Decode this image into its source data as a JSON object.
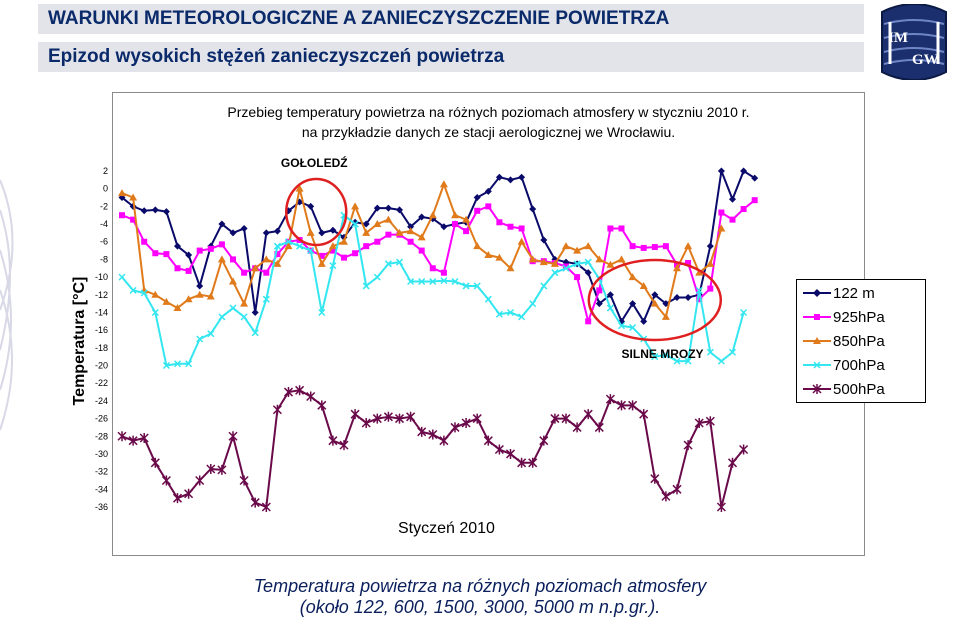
{
  "header": {
    "title": "WARUNKI METEOROLOGICZNE A ZANIECZYSZCZENIE POWIETRZA",
    "subtitle": "Epizod wysokich stężeń zanieczyszczeń powietrza",
    "logo_text_top": "IM",
    "logo_text_bottom": "GW"
  },
  "caption": {
    "line1": "Temperatura powietrza na różnych poziomach atmosfery",
    "line2": "(około 122, 600, 1500, 3000, 5000 m n.p.gr.)."
  },
  "colors": {
    "series_122m": "#0a0a6a",
    "series_925": "#ff00ff",
    "series_850": "#e07a1a",
    "series_700": "#33e6f0",
    "series_500": "#6a0a4a",
    "annotation_circle": "#e02020",
    "header_text": "#0a2a6a",
    "caption_text": "#0a1f5c"
  },
  "chart_data": {
    "type": "line",
    "title": "Przebieg temperatury powietrza na różnych poziomach atmosfery w styczniu 2010 r.",
    "subtitle": "na przykładzie  danych ze stacji aerologicznej we Wrocławiu.",
    "xlabel": "Styczeń 2010",
    "ylabel": "Temperatura [°C]",
    "ylim": [
      -36,
      2
    ],
    "yticks": [
      2,
      0,
      -2,
      -4,
      -6,
      -8,
      -10,
      -12,
      -14,
      -16,
      -18,
      -20,
      -22,
      -24,
      -26,
      -28,
      -30,
      -32,
      -34,
      -36
    ],
    "grid": false,
    "legend_position": "right",
    "annotations": [
      {
        "text": "GOŁOLEDŹ",
        "x_index": 17,
        "y": -3
      },
      {
        "text": "SILNE MROZY",
        "x_index": 50,
        "y": -17
      }
    ],
    "series": [
      {
        "name": "122 m",
        "marker": "diamond",
        "values": [
          -1,
          -2,
          -2.5,
          -2.4,
          -2.6,
          -6.5,
          -7.5,
          -11,
          -6.5,
          -4,
          -5,
          -4.5,
          -14,
          -5,
          -4.8,
          -2.5,
          -1.5,
          -2,
          -5,
          -4.7,
          -5.5,
          -3.8,
          -4,
          -2.2,
          -2.2,
          -2.4,
          -4.3,
          -3.2,
          -3.4,
          -4.3,
          -4,
          -3.8,
          -1,
          -0.3,
          1.3,
          1,
          1.3,
          -2.3,
          -5.8,
          -8,
          -8.3,
          -8.5,
          -9.5,
          -13,
          -12,
          -15,
          -13,
          -15,
          -12,
          -13,
          -12.3,
          -12.3,
          -12,
          -6.5,
          2,
          -1.2,
          2,
          1.2
        ]
      },
      {
        "name": "925hPa",
        "marker": "square",
        "values": [
          -3,
          -3.5,
          -6,
          -7.3,
          -7.4,
          -9,
          -9.3,
          -7,
          -6.8,
          -6.3,
          -8,
          -9.5,
          -9,
          -9.5,
          -7.4,
          -6,
          -5.8,
          -7,
          -7.6,
          -7,
          -7.8,
          -7.3,
          -6.5,
          -6,
          -5.2,
          -5.2,
          -6,
          -7,
          -9,
          -9.5,
          -4,
          -4.8,
          -2.5,
          -2,
          -3.8,
          -4.3,
          -4.5,
          -8.2,
          -8.2,
          -8.4,
          -8.8,
          -10,
          -15,
          -11.5,
          -4.5,
          -4.5,
          -6.5,
          -6.7,
          -6.6,
          -6.5,
          -8.6,
          -8.4,
          -12.5,
          -11.3,
          -2.7,
          -3.5,
          -2.3,
          -1.3
        ]
      },
      {
        "name": "850hPa",
        "marker": "triangle",
        "values": [
          -0.5,
          -1,
          -11.5,
          -12,
          -12.8,
          -13.5,
          -12.5,
          -12,
          -12.2,
          -8,
          -10.5,
          -13,
          -9,
          -8,
          -8.5,
          -6.5,
          0,
          -5,
          -8.5,
          -6.5,
          -6,
          -2,
          -5,
          -4,
          -3.5,
          -5,
          -4.8,
          -5.5,
          -3,
          0.5,
          -3,
          -3.5,
          -6.5,
          -7.5,
          -7.8,
          -9,
          -6,
          -8,
          -8.3,
          -8.5,
          -6.5,
          -7,
          -6.5,
          -8,
          -8.6,
          -8,
          -10,
          -11,
          -13,
          -14.5,
          -9,
          -6.5,
          -9.5,
          -8.5,
          -4.5
        ]
      },
      {
        "name": "700hPa",
        "marker": "x",
        "values": [
          -10,
          -11.5,
          -11.8,
          -14,
          -20,
          -19.8,
          -19.8,
          -17,
          -16.4,
          -14.5,
          -13.5,
          -14.5,
          -16.3,
          -12.5,
          -6.5,
          -6,
          -6.5,
          -7,
          -14,
          -8.7,
          -3,
          -4,
          -11,
          -10,
          -8.5,
          -8.3,
          -10.5,
          -10.5,
          -10.5,
          -10.4,
          -10.5,
          -11,
          -11,
          -12.5,
          -14.2,
          -14,
          -14.5,
          -13,
          -11,
          -9.5,
          -9,
          -8.5,
          -8.3,
          -10.2,
          -13.5,
          -15.5,
          -15.7,
          -17,
          -19,
          -18.8,
          -19.5,
          -19.5,
          -11.5,
          -18.5,
          -19.5,
          -18.5,
          -14
        ]
      },
      {
        "name": "500hPa",
        "marker": "star",
        "values": [
          -28,
          -28.5,
          -28.2,
          -31,
          -33,
          -35,
          -34.5,
          -33,
          -31.7,
          -31.8,
          -28,
          -33,
          -35.5,
          -36,
          -25,
          -23,
          -22.8,
          -23.5,
          -24.5,
          -28.5,
          -29,
          -25.5,
          -26.5,
          -26,
          -25.8,
          -26,
          -25.8,
          -27.5,
          -27.8,
          -28.5,
          -27,
          -26.5,
          -26,
          -28.5,
          -29.5,
          -30,
          -31,
          -31,
          -28.5,
          -26,
          -26,
          -27,
          -25.5,
          -27,
          -23.8,
          -24.5,
          -24.5,
          -25.5,
          -32.8,
          -34.8,
          -34,
          -29,
          -26.5,
          -26.3,
          -36,
          -31,
          -29.5
        ]
      }
    ]
  }
}
